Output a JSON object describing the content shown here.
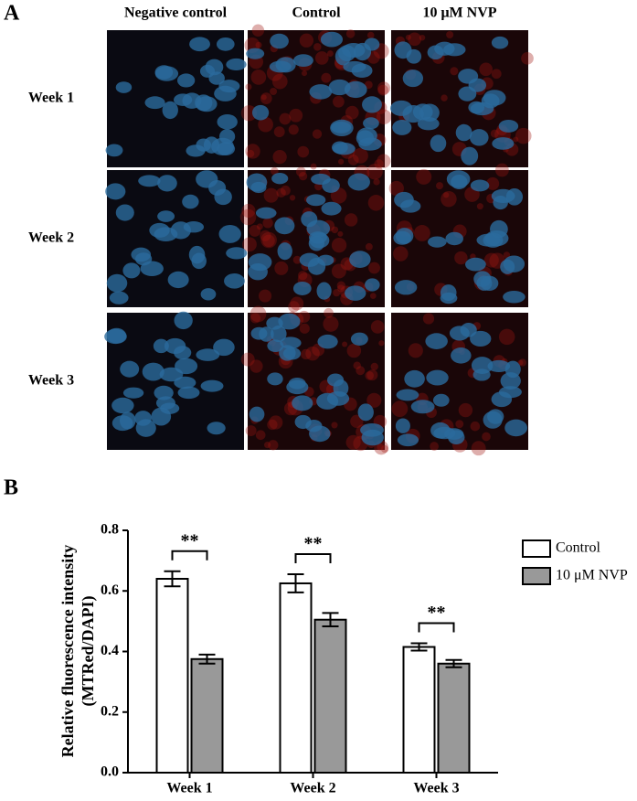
{
  "figure": {
    "panel_a_label": "A",
    "panel_b_label": "B",
    "columns": [
      "Negative control",
      "Control",
      "10 μM NVP"
    ],
    "rows": [
      "Week 1",
      "Week 2",
      "Week 3"
    ]
  },
  "chart_data": {
    "type": "bar",
    "ylabel": [
      "Relative fluorescence intensity",
      "(MTRed/DAPI)"
    ],
    "categories": [
      "Week 1",
      "Week 2",
      "Week 3"
    ],
    "series": [
      {
        "name": "Control",
        "color": "#ffffff",
        "values": [
          0.64,
          0.625,
          0.415
        ],
        "errors": [
          0.025,
          0.03,
          0.012
        ]
      },
      {
        "name": "10 μM NVP",
        "color": "#999999",
        "values": [
          0.375,
          0.505,
          0.36
        ],
        "errors": [
          0.015,
          0.022,
          0.012
        ]
      }
    ],
    "significance": [
      "**",
      "**",
      "**"
    ],
    "ylim": [
      0,
      0.8
    ],
    "yticks": [
      {
        "value": 0,
        "label": "0.0"
      },
      0.2,
      0.4,
      0.6,
      0.8
    ],
    "legend": "right"
  }
}
